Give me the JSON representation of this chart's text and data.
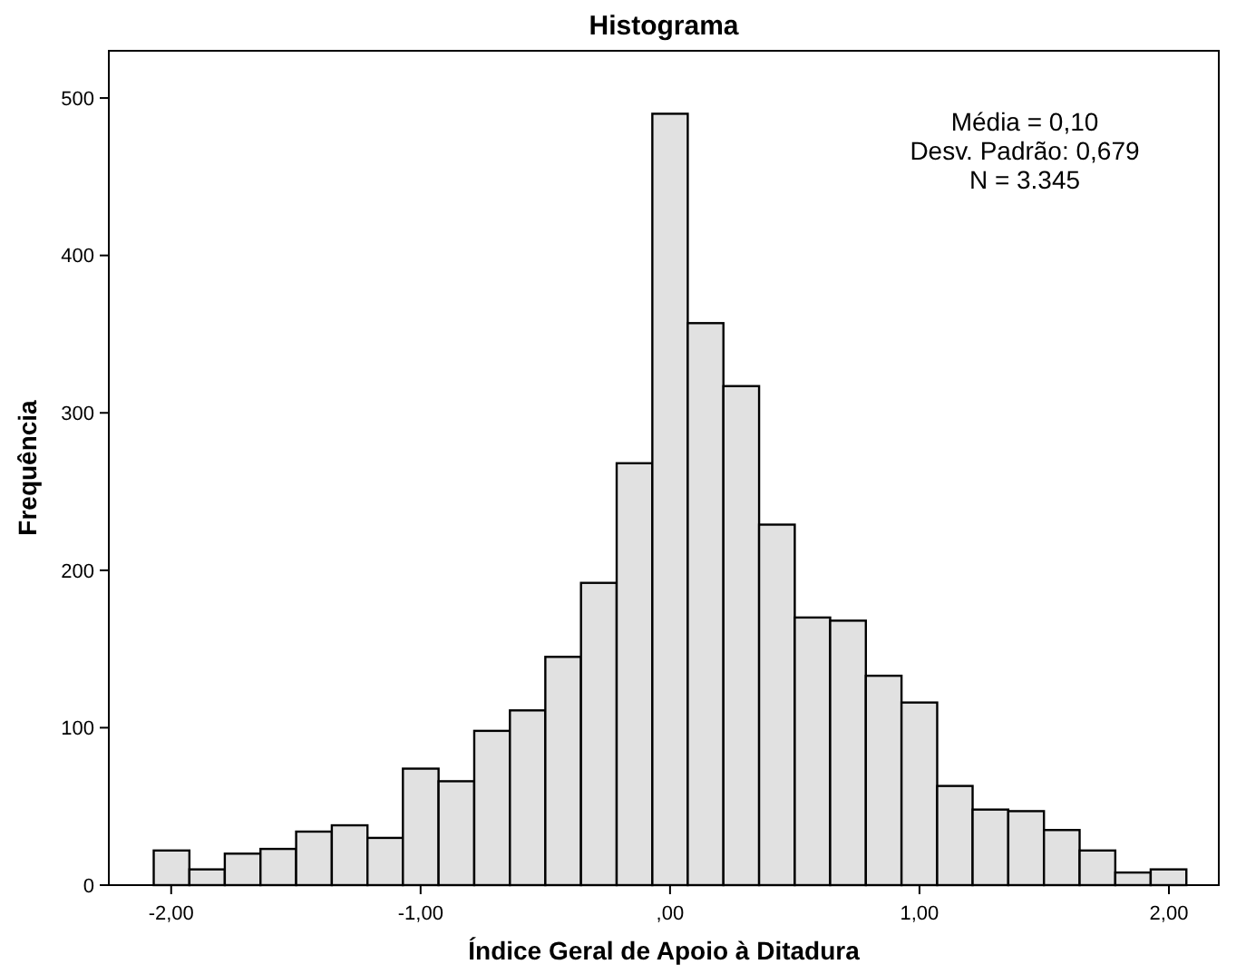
{
  "chart_data": {
    "type": "histogram",
    "title": "Histograma",
    "xlabel": "Índice Geral de Apoio à Ditadura",
    "ylabel": "Frequência",
    "bins": [
      -2.07,
      -1.927,
      -1.785,
      -1.642,
      -1.499,
      -1.356,
      -1.213,
      -1.071,
      -0.928,
      -0.785,
      -0.642,
      -0.5,
      -0.357,
      -0.214,
      -0.071,
      0.071,
      0.214,
      0.357,
      0.5,
      0.642,
      0.785,
      0.928,
      1.071,
      1.213,
      1.356,
      1.499,
      1.642,
      1.785,
      1.927,
      2.07
    ],
    "values": [
      22,
      10,
      20,
      23,
      34,
      38,
      30,
      74,
      66,
      98,
      111,
      145,
      192,
      268,
      490,
      357,
      317,
      229,
      170,
      168,
      133,
      116,
      63,
      48,
      47,
      35,
      22,
      8,
      10
    ],
    "color": "#e1e1e1",
    "xlim": [
      -2.25,
      2.2
    ],
    "xticks": [
      {
        "value": -2,
        "label": "-2,00"
      },
      {
        "value": -1,
        "label": "-1,00"
      },
      {
        "value": 0,
        "label": ",00"
      },
      {
        "value": 1,
        "label": "1,00"
      },
      {
        "value": 2,
        "label": "2,00"
      }
    ],
    "ylim": [
      0,
      530
    ],
    "yticks": [
      0,
      100,
      200,
      300,
      400,
      500
    ],
    "grid": false,
    "annotations": [
      "Média = 0,10",
      "Desv. Padrão: 0,679",
      "N = 3.345"
    ]
  }
}
